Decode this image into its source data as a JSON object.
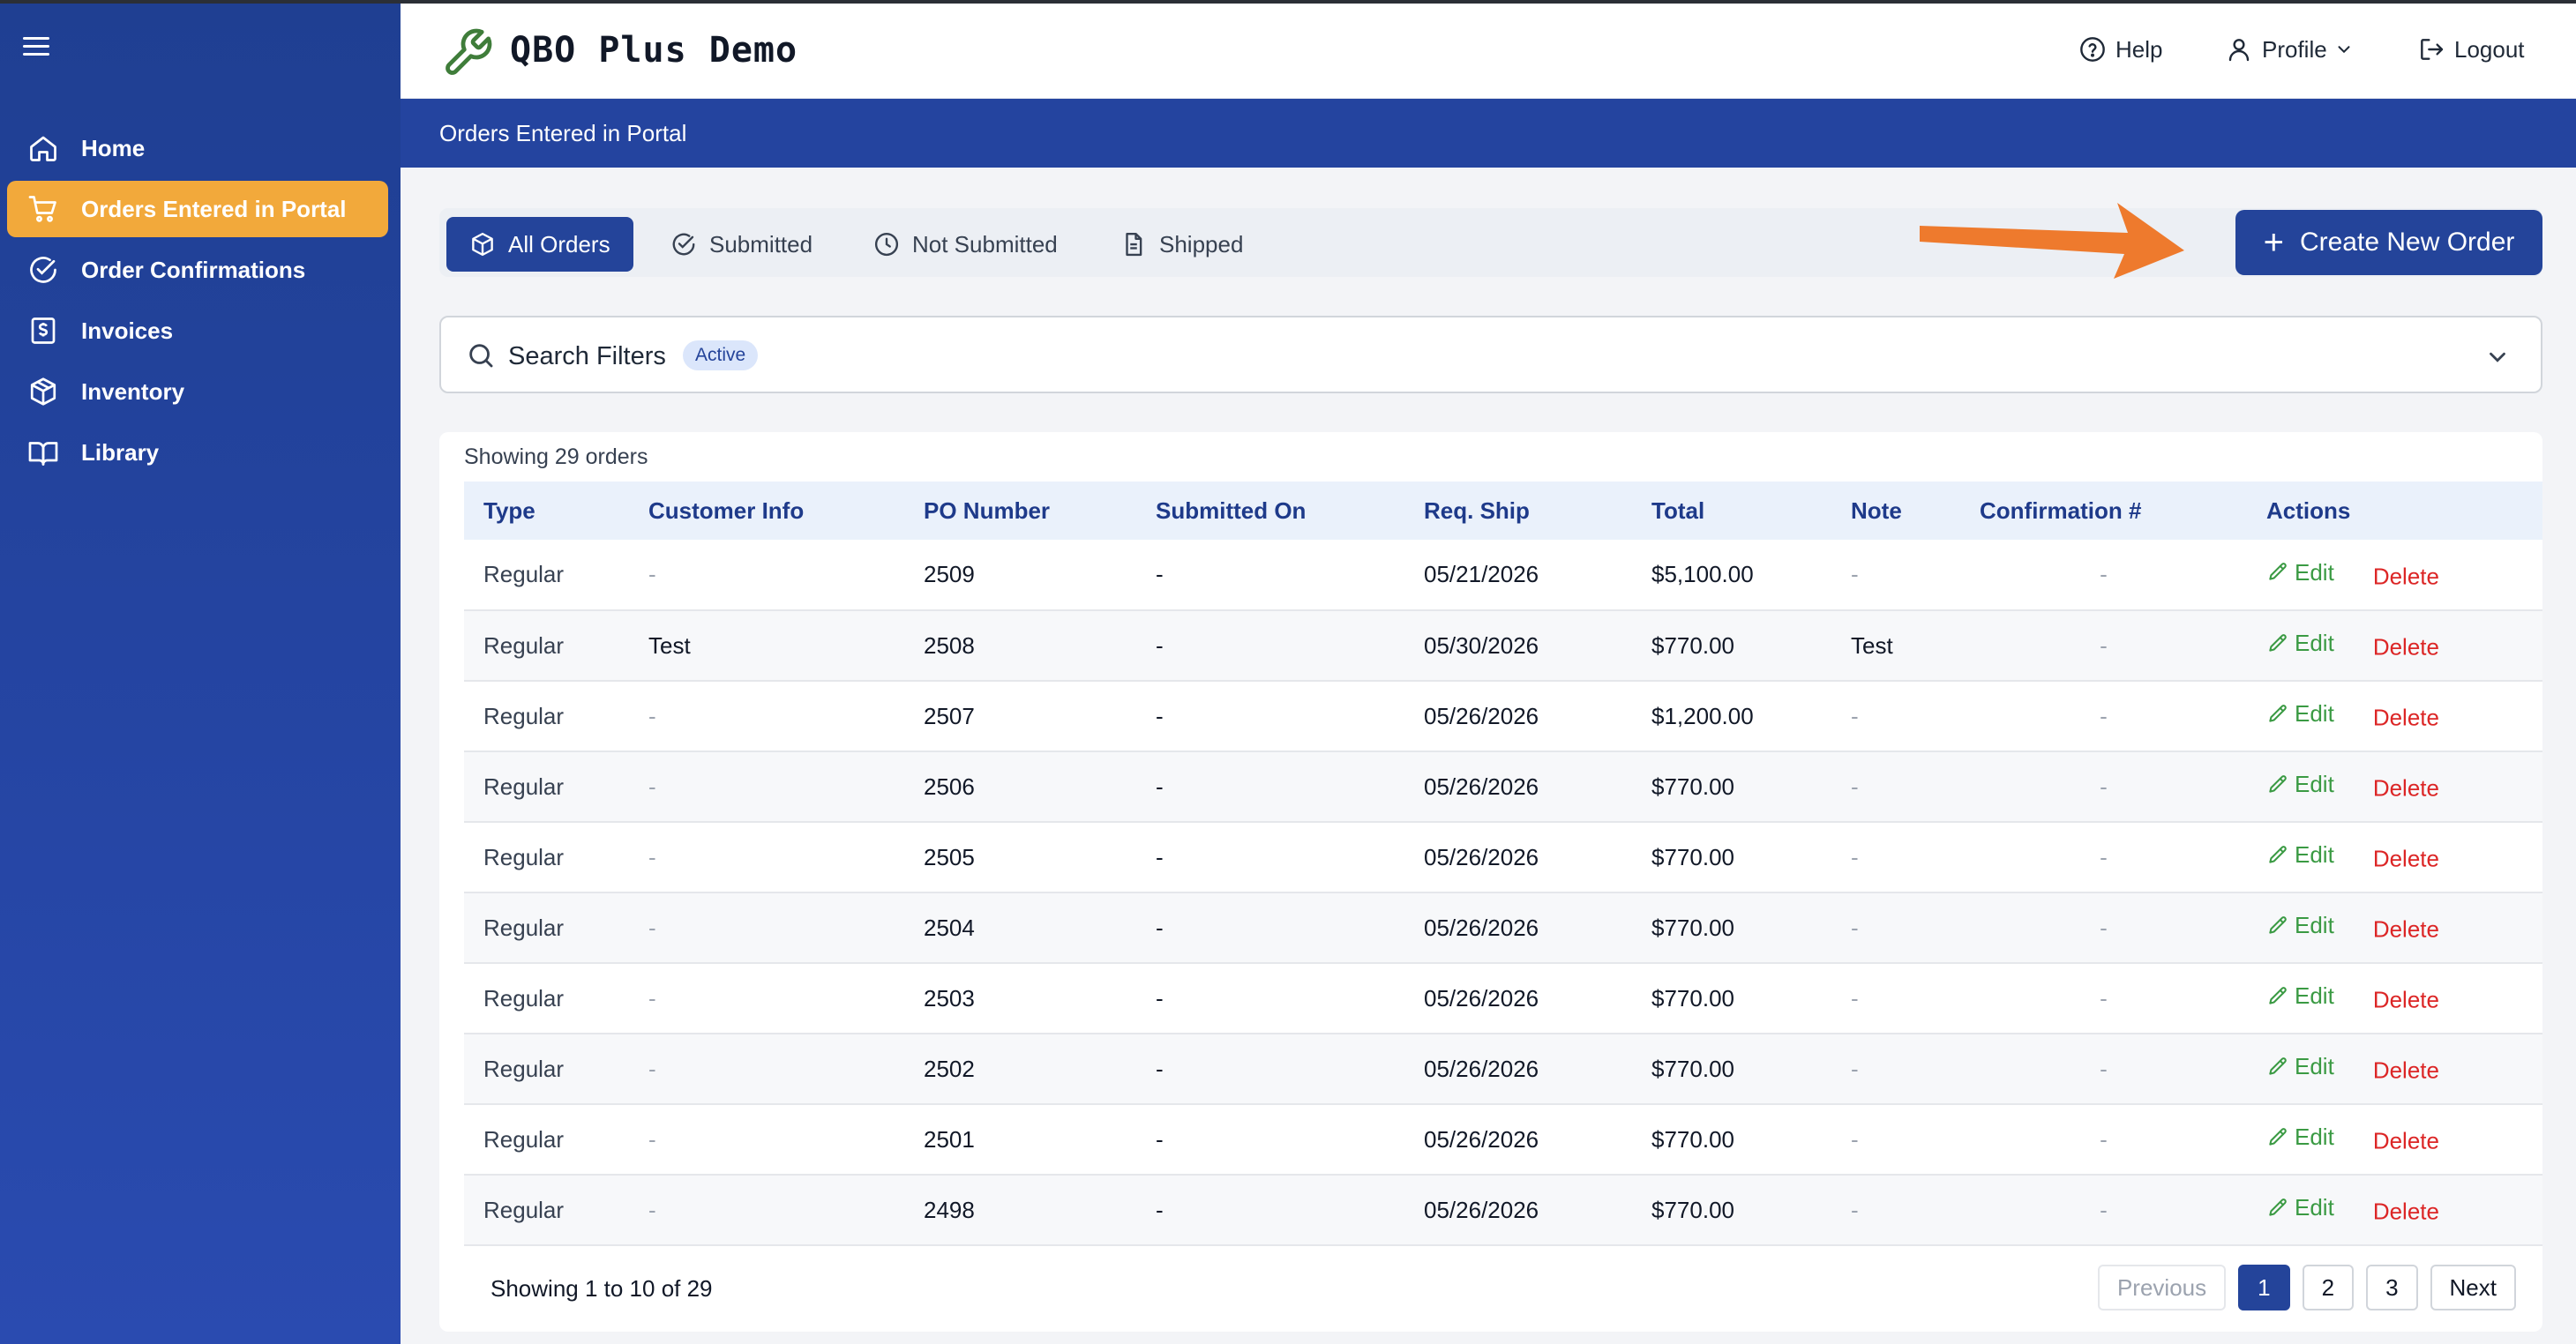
{
  "app": {
    "title": "QBO Plus Demo"
  },
  "header": {
    "help": "Help",
    "profile": "Profile",
    "logout": "Logout"
  },
  "sidebar": {
    "items": [
      {
        "label": "Home",
        "icon": "home-icon",
        "active": false
      },
      {
        "label": "Orders Entered in Portal",
        "icon": "cart-icon",
        "active": true
      },
      {
        "label": "Order Confirmations",
        "icon": "check-circle-icon",
        "active": false
      },
      {
        "label": "Invoices",
        "icon": "dollar-doc-icon",
        "active": false
      },
      {
        "label": "Inventory",
        "icon": "box-icon",
        "active": false
      },
      {
        "label": "Library",
        "icon": "book-icon",
        "active": false
      }
    ]
  },
  "page": {
    "title": "Orders Entered in Portal"
  },
  "tabs": [
    {
      "label": "All Orders",
      "icon": "box-icon",
      "active": true
    },
    {
      "label": "Submitted",
      "icon": "check-circle-icon",
      "active": false
    },
    {
      "label": "Not Submitted",
      "icon": "clock-icon",
      "active": false
    },
    {
      "label": "Shipped",
      "icon": "document-icon",
      "active": false
    }
  ],
  "create_button": {
    "label": "Create New Order"
  },
  "filters": {
    "label": "Search Filters",
    "badge": "Active"
  },
  "table": {
    "summary": "Showing 29 orders",
    "columns": [
      "Type",
      "Customer Info",
      "PO Number",
      "Submitted On",
      "Req. Ship",
      "Total",
      "Note",
      "Confirmation #",
      "Actions"
    ],
    "edit_label": "Edit",
    "delete_label": "Delete",
    "rows": [
      {
        "type": "Regular",
        "customer": "-",
        "po": "2509",
        "submitted": "-",
        "req_ship": "05/21/2026",
        "total": "$5,100.00",
        "note": "-",
        "confirmation": "-"
      },
      {
        "type": "Regular",
        "customer": "Test",
        "po": "2508",
        "submitted": "-",
        "req_ship": "05/30/2026",
        "total": "$770.00",
        "note": "Test",
        "confirmation": "-"
      },
      {
        "type": "Regular",
        "customer": "-",
        "po": "2507",
        "submitted": "-",
        "req_ship": "05/26/2026",
        "total": "$1,200.00",
        "note": "-",
        "confirmation": "-"
      },
      {
        "type": "Regular",
        "customer": "-",
        "po": "2506",
        "submitted": "-",
        "req_ship": "05/26/2026",
        "total": "$770.00",
        "note": "-",
        "confirmation": "-"
      },
      {
        "type": "Regular",
        "customer": "-",
        "po": "2505",
        "submitted": "-",
        "req_ship": "05/26/2026",
        "total": "$770.00",
        "note": "-",
        "confirmation": "-"
      },
      {
        "type": "Regular",
        "customer": "-",
        "po": "2504",
        "submitted": "-",
        "req_ship": "05/26/2026",
        "total": "$770.00",
        "note": "-",
        "confirmation": "-"
      },
      {
        "type": "Regular",
        "customer": "-",
        "po": "2503",
        "submitted": "-",
        "req_ship": "05/26/2026",
        "total": "$770.00",
        "note": "-",
        "confirmation": "-"
      },
      {
        "type": "Regular",
        "customer": "-",
        "po": "2502",
        "submitted": "-",
        "req_ship": "05/26/2026",
        "total": "$770.00",
        "note": "-",
        "confirmation": "-"
      },
      {
        "type": "Regular",
        "customer": "-",
        "po": "2501",
        "submitted": "-",
        "req_ship": "05/26/2026",
        "total": "$770.00",
        "note": "-",
        "confirmation": "-"
      },
      {
        "type": "Regular",
        "customer": "-",
        "po": "2498",
        "submitted": "-",
        "req_ship": "05/26/2026",
        "total": "$770.00",
        "note": "-",
        "confirmation": "-"
      }
    ]
  },
  "pagination": {
    "info": "Showing 1 to 10 of 29",
    "previous": "Previous",
    "next": "Next",
    "pages": [
      "1",
      "2",
      "3"
    ],
    "current": "1"
  },
  "colors": {
    "sidebar": "#2545a3",
    "primary": "#24449a",
    "active_nav": "#f2a93b",
    "edit": "#3a9a43",
    "delete": "#dc2626",
    "arrow": "#ee7a2d"
  }
}
